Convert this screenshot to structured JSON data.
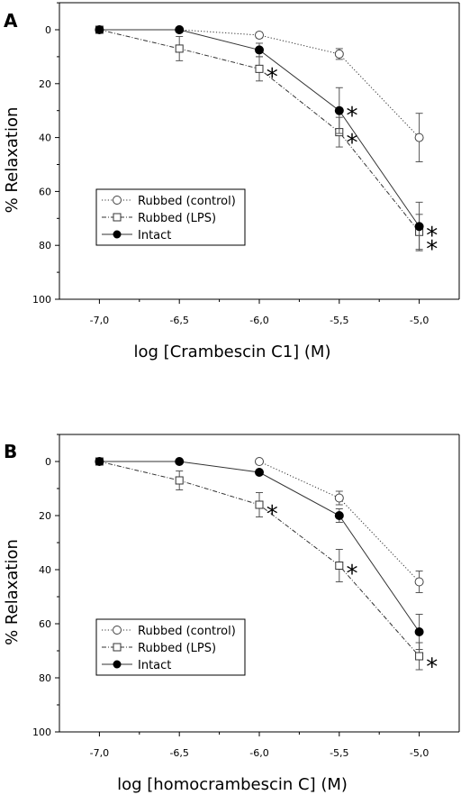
{
  "chart_data": [
    {
      "type": "line",
      "panel_label": "A",
      "xlabel": "log [Crambescin C1] (M)",
      "ylabel": "% Relaxation",
      "xlim": [
        -7.25,
        -4.75
      ],
      "ylim": [
        0,
        100
      ],
      "y_inverted": true,
      "xticks": [
        -7.0,
        -6.5,
        -6.0,
        -5.5,
        -5.0
      ],
      "xtick_labels": [
        "-7,0",
        "-6,5",
        "-6,0",
        "-5,5",
        "-5,0"
      ],
      "yticks": [
        0,
        20,
        40,
        60,
        80,
        100
      ],
      "ytick_labels": [
        "0",
        "20",
        "40",
        "60",
        "80",
        "100"
      ],
      "grid": false,
      "legend_position": "lower-left",
      "x": [
        -7.0,
        -6.5,
        -6.0,
        -5.5,
        -5.0
      ],
      "series": [
        {
          "name": "Rubbed (control)",
          "marker": "open-circle",
          "line": "dotted",
          "x": [
            -6.5,
            -6.0,
            -5.5,
            -5.0
          ],
          "values": [
            0,
            2,
            9,
            40
          ],
          "errors": [
            0,
            1,
            2,
            9
          ]
        },
        {
          "name": "Rubbed (LPS)",
          "marker": "open-square",
          "line": "dash-dot",
          "x": [
            -7.0,
            -6.5,
            -6.0,
            -5.5,
            -5.0
          ],
          "values": [
            0,
            7,
            14.5,
            38,
            75
          ],
          "errors": [
            0,
            4.5,
            4.5,
            5.5,
            6.5
          ]
        },
        {
          "name": "Intact",
          "marker": "filled-circle",
          "line": "solid",
          "x": [
            -7.0,
            -6.5,
            -6.0,
            -5.5,
            -5.0
          ],
          "values": [
            0,
            0,
            7.5,
            30,
            73
          ],
          "errors": [
            0,
            0,
            2.5,
            8.5,
            9
          ]
        }
      ],
      "annotations": [
        {
          "text": "*",
          "x": -5.92,
          "y": 17
        },
        {
          "text": "*",
          "x": -5.42,
          "y": 31.5
        },
        {
          "text": "*",
          "x": -5.42,
          "y": 41.5
        },
        {
          "text": "*",
          "x": -4.92,
          "y": 76
        },
        {
          "text": "*",
          "x": -4.92,
          "y": 81
        }
      ]
    },
    {
      "type": "line",
      "panel_label": "B",
      "xlabel": "log [homocrambescin C] (M)",
      "ylabel": "% Relaxation",
      "xlim": [
        -7.25,
        -4.75
      ],
      "ylim": [
        0,
        100
      ],
      "y_inverted": true,
      "xticks": [
        -7.0,
        -6.5,
        -6.0,
        -5.5,
        -5.0
      ],
      "xtick_labels": [
        "-7,0",
        "-6,5",
        "-6,0",
        "-5,5",
        "-5,0"
      ],
      "yticks": [
        0,
        20,
        40,
        60,
        80,
        100
      ],
      "ytick_labels": [
        "0",
        "20",
        "40",
        "60",
        "80",
        "100"
      ],
      "grid": false,
      "legend_position": "lower-left",
      "x": [
        -7.0,
        -6.5,
        -6.0,
        -5.5,
        -5.0
      ],
      "series": [
        {
          "name": "Rubbed (control)",
          "marker": "open-circle",
          "line": "dotted",
          "x": [
            -6.0,
            -5.5,
            -5.0
          ],
          "values": [
            0,
            13.5,
            44.5
          ],
          "errors": [
            0,
            2.5,
            4
          ]
        },
        {
          "name": "Rubbed (LPS)",
          "marker": "open-square",
          "line": "dash-dot",
          "x": [
            -7.0,
            -6.5,
            -6.0,
            -5.5,
            -5.0
          ],
          "values": [
            0,
            7,
            16,
            38.5,
            72
          ],
          "errors": [
            0,
            3.5,
            4.5,
            6,
            5
          ]
        },
        {
          "name": "Intact",
          "marker": "filled-circle",
          "line": "solid",
          "x": [
            -7.0,
            -6.5,
            -6.0,
            -5.5,
            -5.0
          ],
          "values": [
            0,
            0,
            4,
            20,
            63
          ],
          "errors": [
            0,
            0,
            0,
            2.5,
            6.5
          ]
        }
      ],
      "annotations": [
        {
          "text": "*",
          "x": -5.92,
          "y": 19
        },
        {
          "text": "*",
          "x": -5.42,
          "y": 41
        },
        {
          "text": "*",
          "x": -4.92,
          "y": 75.5
        }
      ]
    }
  ]
}
